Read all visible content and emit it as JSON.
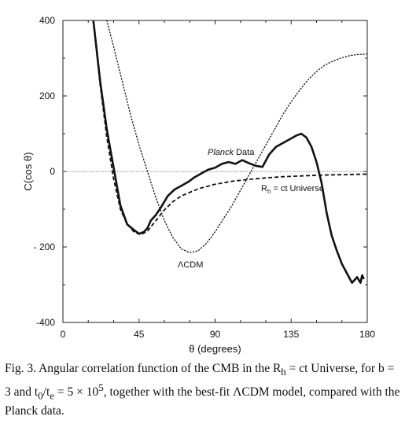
{
  "chart_data": {
    "type": "line",
    "xlabel": "θ (degrees)",
    "ylabel": "C(cos θ)",
    "xlim": [
      0,
      180
    ],
    "ylim": [
      -400,
      400
    ],
    "xticks": [
      0,
      45,
      90,
      135,
      180
    ],
    "yticks": [
      400,
      200,
      0,
      -200,
      -400
    ],
    "ytick_labels": [
      "400",
      "200",
      "0",
      "- 200",
      "-400"
    ],
    "zero_line": true,
    "series": [
      {
        "name": "Planck Data",
        "style": "solid",
        "x": [
          18,
          22,
          26,
          30,
          34,
          38,
          42,
          45,
          48,
          50,
          52,
          55,
          58,
          62,
          66,
          70,
          74,
          78,
          82,
          86,
          90,
          94,
          98,
          102,
          106,
          110,
          114,
          118,
          122,
          126,
          130,
          134,
          138,
          141,
          144,
          147,
          150,
          153,
          156,
          159,
          162,
          165,
          168,
          171,
          174,
          176,
          177,
          178
        ],
        "y": [
          400,
          240,
          110,
          10,
          -90,
          -140,
          -155,
          -165,
          -160,
          -150,
          -130,
          -115,
          -95,
          -65,
          -48,
          -38,
          -28,
          -15,
          -5,
          5,
          10,
          20,
          25,
          20,
          30,
          22,
          15,
          12,
          45,
          65,
          75,
          85,
          95,
          100,
          90,
          65,
          25,
          -30,
          -110,
          -170,
          -210,
          -245,
          -270,
          -295,
          -280,
          -295,
          -275,
          -285
        ]
      },
      {
        "name": "Rh = ct Universe",
        "style": "dashed",
        "x": [
          18,
          22,
          26,
          30,
          34,
          38,
          42,
          46,
          50,
          55,
          60,
          65,
          70,
          80,
          90,
          100,
          110,
          120,
          130,
          140,
          150,
          160,
          170,
          180
        ],
        "y": [
          400,
          230,
          90,
          -20,
          -100,
          -140,
          -160,
          -168,
          -158,
          -130,
          -102,
          -80,
          -65,
          -46,
          -34,
          -26,
          -21,
          -17,
          -14,
          -12,
          -10,
          -9,
          -8,
          -7
        ]
      },
      {
        "name": "ΛCDM",
        "style": "dotted",
        "x": [
          26,
          30,
          35,
          40,
          45,
          50,
          55,
          60,
          65,
          70,
          75,
          80,
          85,
          90,
          95,
          100,
          105,
          110,
          115,
          120,
          125,
          130,
          135,
          140,
          145,
          150,
          155,
          160,
          165,
          170,
          175,
          180
        ],
        "y": [
          400,
          330,
          240,
          150,
          70,
          0,
          -70,
          -130,
          -175,
          -205,
          -215,
          -210,
          -190,
          -160,
          -125,
          -90,
          -50,
          -10,
          30,
          70,
          110,
          150,
          185,
          215,
          243,
          265,
          282,
          293,
          301,
          307,
          310,
          311
        ]
      }
    ],
    "annotations": {
      "planck_italic": "Planck",
      "planck_rest": " Data",
      "rh_R": "R",
      "rh_sub": "h",
      "rh_rest": " = ct Universe",
      "lcdm": "ΛCDM"
    }
  },
  "caption": {
    "text": "Fig. 3. Angular correlation function of the CMB in the R",
    "sub1": "h",
    "text2": " = ct Universe, for b = 3 and t",
    "sub2": "0",
    "text3": "/t",
    "sub3": "e",
    "text4": " = 5 × 10",
    "sup1": "5",
    "text5": ", together with the best-fit ΛCDM model, compared with the Planck data."
  }
}
